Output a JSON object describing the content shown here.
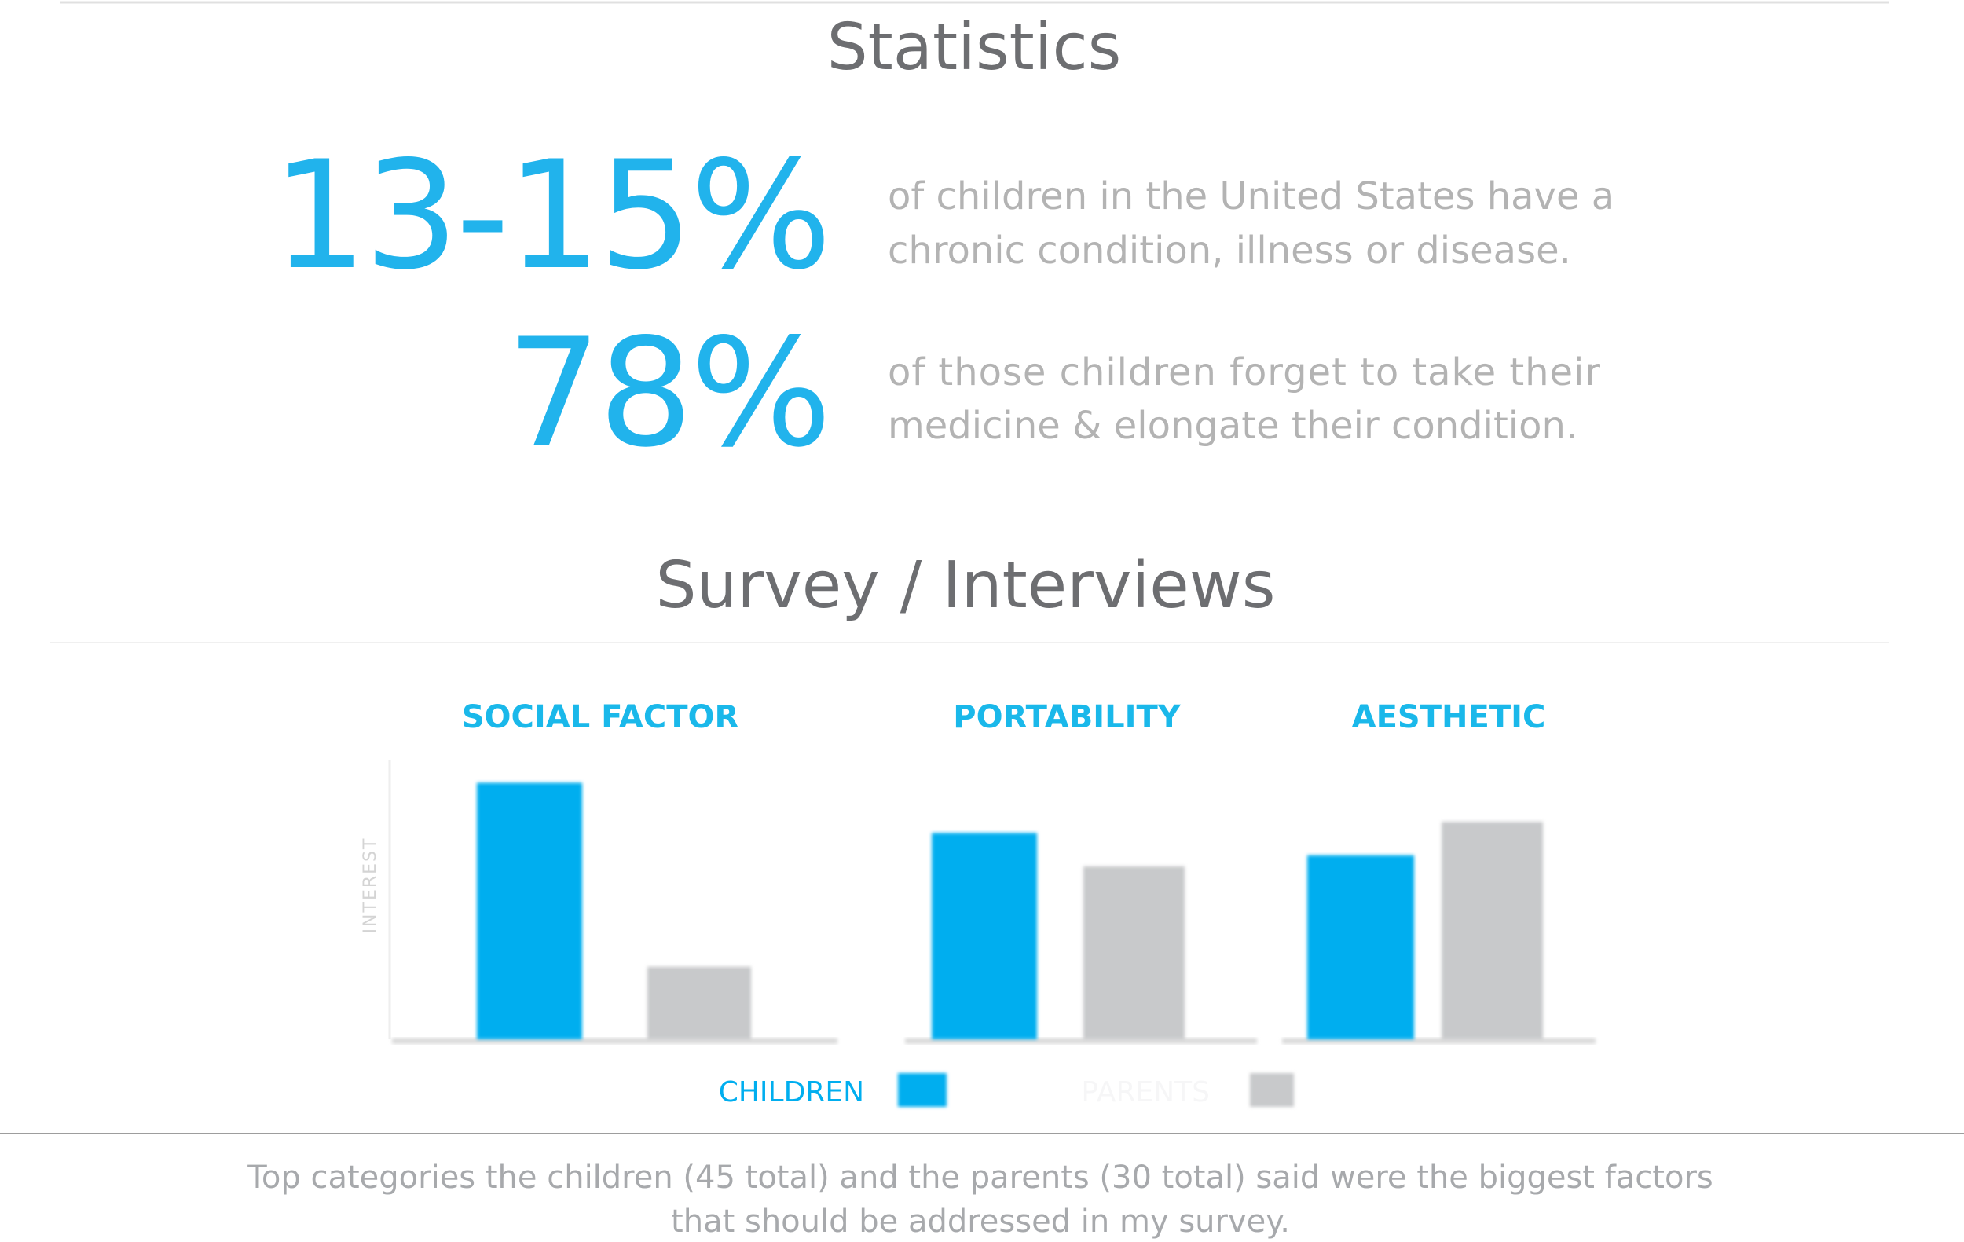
{
  "statistics": {
    "title": "Statistics",
    "items": [
      {
        "value": "13-15%",
        "lines": [
          "of children in the United States have a",
          "chronic condition, illness or disease."
        ]
      },
      {
        "value": "78%",
        "lines": [
          "of those children forget to take their",
          "medicine & elongate their condition."
        ]
      }
    ]
  },
  "chart_data": {
    "type": "bar",
    "title": "Survey / Interviews",
    "ylabel": "INTEREST",
    "categories": [
      "SOCIAL FACTOR",
      "PORTABILITY",
      "AESTHETIC"
    ],
    "series": [
      {
        "name": "CHILDREN",
        "color": "#00aeef",
        "values": [
          92,
          74,
          66
        ]
      },
      {
        "name": "PARENTS",
        "color": "#c8c9cb",
        "values": [
          26,
          62,
          78
        ]
      }
    ],
    "ylim": [
      0,
      100
    ]
  },
  "caption": [
    "Top categories the children (45 total) and the parents (30 total) said were the biggest factors",
    "that should be addressed in my survey."
  ]
}
